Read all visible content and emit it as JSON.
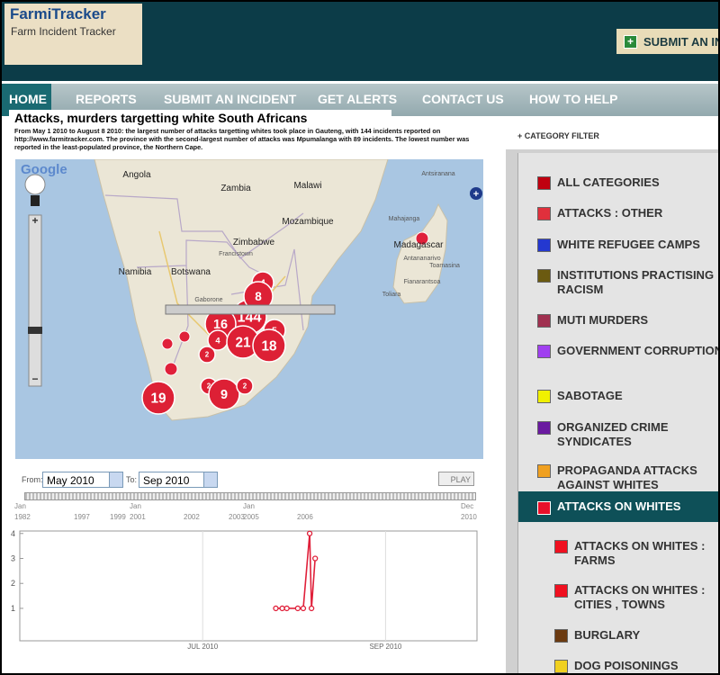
{
  "header": {
    "logo_title": "FarmiTracker",
    "logo_subtitle": "Farm Incident Tracker",
    "submit_button": "SUBMIT AN IN"
  },
  "nav": [
    "HOME",
    "REPORTS",
    "SUBMIT AN INCIDENT",
    "GET ALERTS",
    "CONTACT US",
    "HOW TO HELP"
  ],
  "article": {
    "title": "Attacks, murders targetting white South Africans",
    "description": "From May 1 2010 to August 8 2010: the largest number of attacks targetting whites took place in Gauteng, with 144 incidents reported on http://www.farmitracker.com. The province with the second-largest number of attacks was Mpumalanga with 89 incidents. The lowest number was reported in the least-populated province, the Northern Cape."
  },
  "map": {
    "brand": "Google",
    "places": [
      "Angola",
      "Zambia",
      "Malawi",
      "Mozambique",
      "Zimbabwe",
      "Namibia",
      "Botswana",
      "Madagascar",
      "Antsiranana",
      "Mahajanga",
      "Toamasina",
      "Fianarantsoa",
      "Toliara",
      "Francistown",
      "Gaborone",
      "Antananarivo"
    ],
    "clusters": [
      144,
      4,
      8,
      16,
      5,
      4,
      2,
      21,
      18,
      2,
      19,
      9,
      2
    ]
  },
  "timeline": {
    "from_label": "From:",
    "from": "May 2010",
    "to_label": "To:",
    "to": "Sep 2010",
    "play": "PLAY",
    "ticks": [
      {
        "month": "Jan",
        "year": "1982"
      },
      {
        "year": "1997"
      },
      {
        "year": "1999"
      },
      {
        "month": "Jan",
        "year": "2001"
      },
      {
        "year": "2002"
      },
      {
        "year": "2003"
      },
      {
        "month": "Jan",
        "year": "2005"
      },
      {
        "year": "2006"
      },
      {
        "month": "Dec",
        "year": "2010"
      }
    ]
  },
  "timeline_chart": {
    "type": "line",
    "x": [
      7.8,
      7.87,
      7.92,
      8.04,
      8.1,
      8.17,
      8.19,
      8.23
    ],
    "values": [
      1,
      1,
      1,
      1,
      1,
      4,
      1,
      3
    ],
    "color": "#e0203a",
    "xlim": [
      5,
      10
    ],
    "xticks": [
      {
        "value": 7,
        "label": "JUL 2010"
      },
      {
        "value": 9,
        "label": "SEP 2010"
      }
    ],
    "ylim": [
      -0.3,
      4.1
    ],
    "yticks": [
      1,
      2,
      3,
      4
    ]
  },
  "sidebar": {
    "filter_toggle": "+ CATEGORY FILTER",
    "categories": [
      {
        "label": "ALL CATEGORIES",
        "color": "#c00010"
      },
      {
        "label": "ATTACKS : OTHER",
        "color": "#e0303c"
      },
      {
        "label": "WHITE REFUGEE CAMPS",
        "color": "#2438d0"
      },
      {
        "label": "INSTITUTIONS PRACTISING RACISM",
        "color": "#6b5a10"
      },
      {
        "label": "MUTI MURDERS",
        "color": "#a03050"
      },
      {
        "label": "GOVERNMENT CORRUPTION",
        "color": "#a040f0"
      },
      {
        "label": "SABOTAGE",
        "color": "#f0f000"
      },
      {
        "label": "ORGANIZED CRIME SYNDICATES",
        "color": "#6a1aa0"
      },
      {
        "label": "PROPAGANDA ATTACKS AGAINST WHITES",
        "color": "#f0a020"
      },
      {
        "label": "ATTACKS ON WHITES",
        "color": "#e8102a",
        "selected": true
      },
      {
        "label": "ATTACKS ON WHITES : FARMS",
        "color": "#f01020",
        "sub": true
      },
      {
        "label": "ATTACKS ON WHITES : CITIES , TOWNS",
        "color": "#f01020",
        "sub": true
      },
      {
        "label": "BURGLARY",
        "color": "#6b3a10",
        "sub": true
      },
      {
        "label": "DOG POISONINGS",
        "color": "#f0d020",
        "sub": true
      }
    ]
  }
}
